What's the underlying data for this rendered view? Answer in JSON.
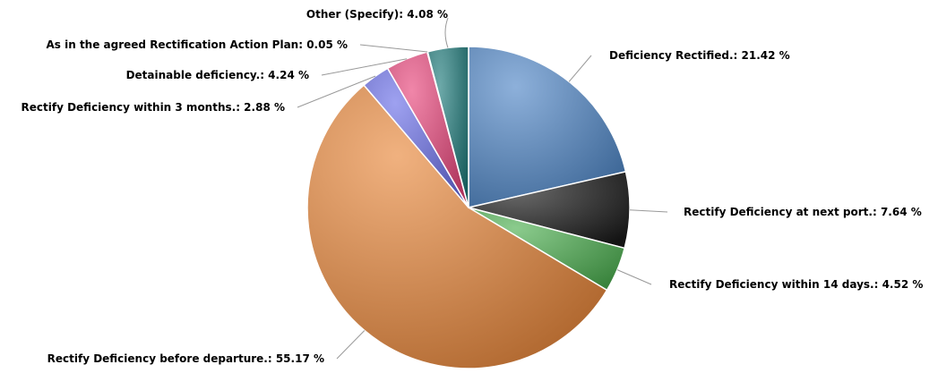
{
  "chart_data": {
    "type": "pie",
    "start_angle_deg": 0,
    "direction": "clockwise",
    "series": [
      {
        "slices": [
          {
            "label": "Deficiency Rectified.",
            "value": 21.42,
            "display": "Deficiency Rectified.: 21.42 %",
            "color": "#4f86c6"
          },
          {
            "label": "Rectify Deficiency at next port.",
            "value": 7.64,
            "display": "Rectify Deficiency at next port.: 7.64 %",
            "color": "#1a1a1a"
          },
          {
            "label": "Rectify Deficiency within 14 days.",
            "value": 4.52,
            "display": "Rectify Deficiency within 14 days.: 4.52 %",
            "color": "#4caf50"
          },
          {
            "label": "Rectify Deficiency before departure.",
            "value": 55.17,
            "display": "Rectify Deficiency before departure.: 55.17 %",
            "color": "#e8873a"
          },
          {
            "label": "Rectify Deficiency within 3 months.",
            "value": 2.88,
            "display": "Rectify Deficiency within 3 months.: 2.88 %",
            "color": "#6a6ee8"
          },
          {
            "label": "Detainable deficiency.",
            "value": 4.24,
            "display": "Detainable deficiency.: 4.24 %",
            "color": "#e8457a"
          },
          {
            "label": "As in the agreed Rectification Action Plan",
            "value": 0.05,
            "display": "As in the agreed Rectification Action Plan: 0.05 %",
            "color": "#f0c040"
          },
          {
            "label": "Other (Specify)",
            "value": 4.08,
            "display": "Other (Specify): 4.08 %",
            "color": "#1f7a7a"
          }
        ]
      }
    ]
  }
}
